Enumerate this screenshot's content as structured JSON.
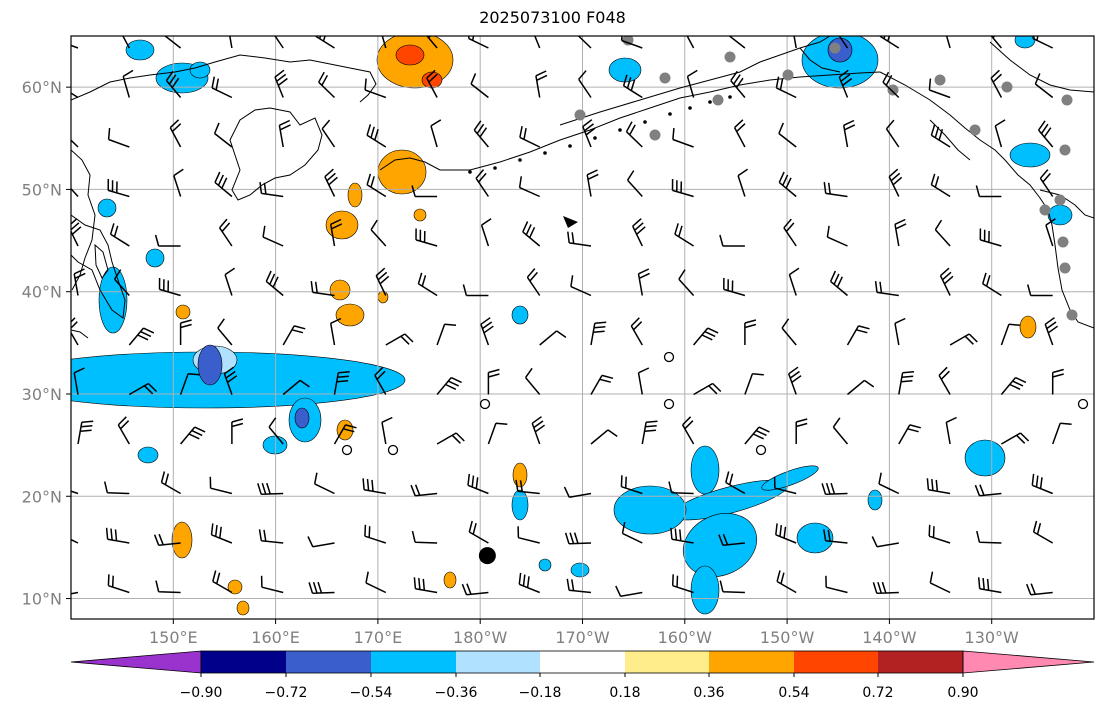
{
  "title": "2025073100 F048",
  "lat_labels": [
    {
      "text": "60°N",
      "lat": 60
    },
    {
      "text": "50°N",
      "lat": 50
    },
    {
      "text": "40°N",
      "lat": 40
    },
    {
      "text": "30°N",
      "lat": 30
    },
    {
      "text": "20°N",
      "lat": 20
    },
    {
      "text": "10°N",
      "lat": 10
    }
  ],
  "lon_labels": [
    {
      "text": "150°E",
      "lon": 150
    },
    {
      "text": "160°E",
      "lon": 160
    },
    {
      "text": "170°E",
      "lon": 170
    },
    {
      "text": "180°W",
      "lon": 180
    },
    {
      "text": "170°W",
      "lon": 190
    },
    {
      "text": "160°W",
      "lon": 200
    },
    {
      "text": "150°W",
      "lon": 210
    },
    {
      "text": "140°W",
      "lon": 220
    },
    {
      "text": "130°W",
      "lon": 230
    }
  ],
  "colorbar": {
    "colors": [
      "#9a32cd",
      "#00008b",
      "#3a5fcd",
      "#00bfff",
      "#b0e2ff",
      "#ffffff",
      "#ffec8b",
      "#ffa500",
      "#ff4500",
      "#b22222",
      "#ff89b0"
    ],
    "tick_labels": [
      "−0.90",
      "−0.72",
      "−0.54",
      "−0.36",
      "−0.18",
      "0.18",
      "0.36",
      "0.54",
      "0.72",
      "0.90"
    ]
  },
  "map_colors": {
    "land_line": "#000000",
    "grid": "#b0b0b0",
    "station": "#808080"
  },
  "cyclone_marker": {
    "lon": 180.7,
    "lat": 14.2
  }
}
